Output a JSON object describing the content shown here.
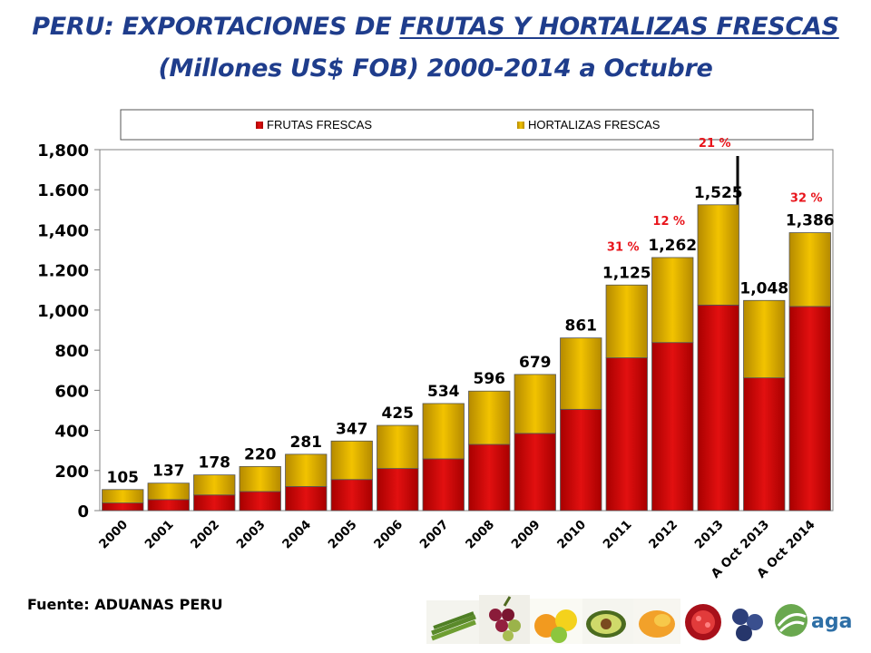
{
  "title": {
    "line1_prefix": "PERU: EXPORTACIONES DE ",
    "line1_underlined": "FRUTAS Y HORTALIZAS FRESCAS",
    "line2": "(Millones US$ FOB) 2000-2014 a Octubre"
  },
  "source": "Fuente: ADUANAS PERU",
  "logo": {
    "text": "agap"
  },
  "colors": {
    "frutas": "#cc0000",
    "hortalizas": "#d4a300",
    "title": "#1f3d8c",
    "annotation": "#e8141b"
  },
  "chart_data": {
    "type": "bar",
    "stacked": true,
    "title": "PERU: EXPORTACIONES DE FRUTAS Y HORTALIZAS FRESCAS (Millones US$ FOB) 2000-2014 a Octubre",
    "xlabel": "",
    "ylabel": "",
    "ylim": [
      0,
      1800
    ],
    "yticks": [
      0,
      200,
      400,
      600,
      800,
      1000,
      1200,
      1400,
      1600,
      1800
    ],
    "ytick_labels": [
      "0",
      "200",
      "400",
      "600",
      "800",
      "1,000",
      "1.200",
      "1,400",
      "1.600",
      "1,800"
    ],
    "grid": false,
    "legend_position": "top",
    "categories": [
      "2000",
      "2001",
      "2002",
      "2003",
      "2004",
      "2005",
      "2006",
      "2007",
      "2008",
      "2009",
      "2010",
      "2011",
      "2012",
      "2013",
      "A Oct 2013",
      "A Oct 2014"
    ],
    "series": [
      {
        "name": "FRUTAS FRESCAS",
        "color": "#cc0000",
        "values": [
          38,
          55,
          78,
          95,
          120,
          155,
          210,
          258,
          330,
          385,
          505,
          762,
          838,
          1025,
          662,
          1018
        ]
      },
      {
        "name": "HORTALIZAS FRESCAS",
        "color": "#d4a300",
        "values": [
          67,
          82,
          100,
          125,
          161,
          192,
          215,
          276,
          266,
          294,
          356,
          363,
          424,
          500,
          386,
          368
        ]
      }
    ],
    "totals": [
      "105",
      "137",
      "178",
      "220",
      "281",
      "347",
      "425",
      "534",
      "596",
      "679",
      "861",
      "1,125",
      "1,262",
      "1,525",
      "1,048",
      "1,386"
    ],
    "growth_annotations": [
      {
        "category": "2011",
        "text": "31 %"
      },
      {
        "category": "2012",
        "text": "12 %"
      },
      {
        "category": "2013",
        "text": "21 %"
      },
      {
        "category": "A Oct 2014",
        "text": "32 %"
      }
    ]
  }
}
